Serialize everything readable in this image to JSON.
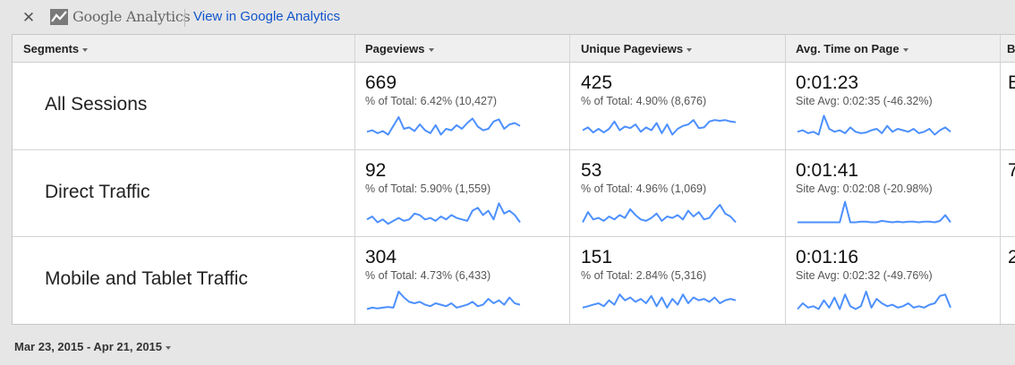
{
  "header": {
    "close_icon": "close-icon",
    "logo_icon": "analytics-trend-icon",
    "product_name": "Google Analytics",
    "view_link": "View in Google Analytics"
  },
  "columns": [
    "Segments",
    "Pageviews",
    "Unique Pageviews",
    "Avg. Time on Page",
    "B"
  ],
  "rows": [
    {
      "segment": "All Sessions",
      "pageviews": {
        "value": "669",
        "sub": "% of Total: 6.42% (10,427)",
        "spark": [
          18,
          20,
          16,
          19,
          14,
          26,
          38,
          22,
          24,
          19,
          28,
          20,
          16,
          27,
          14,
          22,
          20,
          27,
          22,
          30,
          36,
          25,
          20,
          22,
          32,
          35,
          22,
          28,
          30,
          26
        ]
      },
      "unique": {
        "value": "425",
        "sub": "% of Total: 4.90% (8,676)",
        "spark": [
          20,
          24,
          17,
          22,
          17,
          22,
          32,
          20,
          25,
          23,
          28,
          18,
          24,
          20,
          30,
          16,
          28,
          14,
          22,
          26,
          28,
          34,
          23,
          24,
          32,
          34,
          33,
          34,
          32,
          31
        ]
      },
      "avg_time": {
        "value": "0:01:23",
        "sub": "Site Avg: 0:02:35 (-46.32%)",
        "spark": [
          18,
          20,
          16,
          18,
          14,
          40,
          22,
          18,
          20,
          16,
          24,
          18,
          16,
          17,
          20,
          22,
          16,
          26,
          18,
          22,
          20,
          18,
          22,
          16,
          18,
          22,
          14,
          20,
          24,
          18
        ]
      },
      "edge": "B"
    },
    {
      "segment": "Direct Traffic",
      "pageviews": {
        "value": "92",
        "sub": "% of Total: 5.90% (1,559)",
        "spark": [
          18,
          22,
          14,
          18,
          12,
          16,
          20,
          16,
          18,
          26,
          24,
          18,
          20,
          16,
          22,
          18,
          24,
          20,
          18,
          16,
          30,
          34,
          24,
          30,
          18,
          40,
          26,
          30,
          24,
          14
        ]
      },
      "unique": {
        "value": "53",
        "sub": "% of Total: 4.96% (1,069)",
        "spark": [
          14,
          28,
          18,
          20,
          16,
          22,
          18,
          24,
          20,
          32,
          24,
          18,
          16,
          20,
          26,
          16,
          22,
          20,
          24,
          18,
          30,
          22,
          28,
          18,
          20,
          30,
          38,
          26,
          22,
          14
        ]
      },
      "avg_time": {
        "value": "0:01:41",
        "sub": "Site Avg: 0:02:08 (-20.98%)",
        "spark": [
          14,
          14,
          14,
          14,
          14,
          14,
          14,
          14,
          14,
          42,
          14,
          14,
          15,
          15,
          14,
          14,
          16,
          15,
          14,
          15,
          14,
          15,
          15,
          14,
          15,
          15,
          14,
          16,
          24,
          14
        ]
      },
      "edge": "7"
    },
    {
      "segment": "Mobile and Tablet Traffic",
      "pageviews": {
        "value": "304",
        "sub": "% of Total: 4.73% (6,433)",
        "spark": [
          14,
          16,
          15,
          16,
          17,
          16,
          38,
          30,
          24,
          22,
          24,
          20,
          18,
          22,
          20,
          18,
          22,
          16,
          18,
          20,
          24,
          18,
          20,
          28,
          22,
          26,
          20,
          30,
          22,
          20
        ]
      },
      "unique": {
        "value": "151",
        "sub": "% of Total: 2.84% (5,316)",
        "spark": [
          16,
          18,
          20,
          22,
          18,
          26,
          20,
          34,
          26,
          30,
          24,
          28,
          22,
          32,
          18,
          30,
          16,
          28,
          20,
          34,
          22,
          30,
          26,
          28,
          24,
          30,
          22,
          26,
          28,
          26
        ]
      },
      "avg_time": {
        "value": "0:01:16",
        "sub": "Site Avg: 0:02:32 (-49.76%)",
        "spark": [
          14,
          22,
          16,
          18,
          14,
          26,
          16,
          30,
          14,
          34,
          18,
          14,
          18,
          38,
          16,
          28,
          22,
          18,
          20,
          16,
          18,
          22,
          16,
          18,
          16,
          20,
          22,
          32,
          34,
          16
        ]
      },
      "edge": "2"
    }
  ],
  "date_range": "Mar 23, 2015 - Apr 21, 2015",
  "accent_color": "#4d90fe",
  "link_color": "#1155cc"
}
